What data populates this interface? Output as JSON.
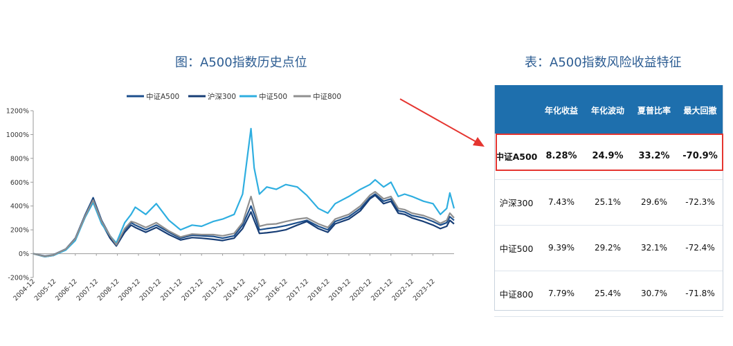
{
  "chart_data": {
    "type": "line",
    "title": "图：A500指数历史点位",
    "xlabel": "",
    "ylabel": "",
    "ylim": [
      -200,
      1200
    ],
    "yticks": [
      -200,
      0,
      200,
      400,
      600,
      800,
      1000,
      1200
    ],
    "ytick_labels": [
      "-200%",
      "0%",
      "200%",
      "400%",
      "600%",
      "800%",
      "1000%",
      "1200%"
    ],
    "x_labels": [
      "2004-12",
      "2005-12",
      "2006-12",
      "2007-12",
      "2008-12",
      "2009-12",
      "2010-12",
      "2011-12",
      "2012-12",
      "2013-12",
      "2014-12",
      "2015-12",
      "2016-12",
      "2017-12",
      "2018-12",
      "2019-12",
      "2020-12",
      "2021-12",
      "2022-12",
      "2023-12"
    ],
    "x_range": [
      2004.95,
      2024.95
    ],
    "grid": false,
    "legend": "top",
    "series": [
      {
        "name": "中证A500",
        "color": "#1c4f8c",
        "x": [
          2004.95,
          2005.5,
          2005.9,
          2006.5,
          2006.95,
          2007.4,
          2007.8,
          2008.2,
          2008.6,
          2008.9,
          2009.3,
          2009.6,
          2009.8,
          2010.3,
          2010.8,
          2011.4,
          2011.95,
          2012.5,
          2012.95,
          2013.5,
          2013.95,
          2014.5,
          2014.9,
          2015.3,
          2015.45,
          2015.7,
          2016.05,
          2016.5,
          2016.95,
          2017.5,
          2017.95,
          2018.5,
          2018.95,
          2019.3,
          2019.95,
          2020.5,
          2020.95,
          2021.2,
          2021.6,
          2021.95,
          2022.3,
          2022.6,
          2022.95,
          2023.5,
          2023.95,
          2024.3,
          2024.6,
          2024.75,
          2024.95
        ],
        "y": [
          0,
          -20,
          -10,
          40,
          130,
          320,
          470,
          280,
          150,
          80,
          200,
          260,
          240,
          200,
          240,
          180,
          130,
          155,
          150,
          145,
          130,
          150,
          240,
          400,
          330,
          200,
          210,
          220,
          235,
          260,
          280,
          230,
          200,
          270,
          310,
          380,
          470,
          500,
          440,
          460,
          360,
          350,
          320,
          300,
          270,
          240,
          260,
          310,
          280
        ]
      },
      {
        "name": "沪深300",
        "color": "#173d75",
        "x": [
          2004.95,
          2005.5,
          2005.9,
          2006.5,
          2006.95,
          2007.4,
          2007.8,
          2008.2,
          2008.6,
          2008.9,
          2009.3,
          2009.6,
          2009.8,
          2010.3,
          2010.8,
          2011.4,
          2011.95,
          2012.5,
          2012.95,
          2013.5,
          2013.95,
          2014.5,
          2014.9,
          2015.3,
          2015.45,
          2015.7,
          2016.05,
          2016.5,
          2016.95,
          2017.5,
          2017.95,
          2018.5,
          2018.95,
          2019.3,
          2019.95,
          2020.5,
          2020.95,
          2021.2,
          2021.6,
          2021.95,
          2022.3,
          2022.6,
          2022.95,
          2023.5,
          2023.95,
          2024.3,
          2024.6,
          2024.75,
          2024.95
        ],
        "y": [
          0,
          -25,
          -15,
          35,
          120,
          300,
          460,
          260,
          130,
          65,
          180,
          240,
          220,
          180,
          220,
          160,
          115,
          135,
          130,
          120,
          110,
          130,
          210,
          350,
          280,
          170,
          175,
          185,
          200,
          240,
          270,
          210,
          180,
          250,
          290,
          360,
          460,
          490,
          420,
          440,
          340,
          330,
          300,
          270,
          240,
          210,
          230,
          280,
          250
        ]
      },
      {
        "name": "中证500",
        "color": "#2eaee0",
        "x": [
          2004.95,
          2005.5,
          2005.9,
          2006.5,
          2006.95,
          2007.4,
          2007.8,
          2008.2,
          2008.6,
          2008.9,
          2009.3,
          2009.6,
          2009.8,
          2010.3,
          2010.8,
          2011.4,
          2011.95,
          2012.5,
          2012.95,
          2013.5,
          2013.95,
          2014.5,
          2014.9,
          2015.3,
          2015.45,
          2015.7,
          2016.05,
          2016.5,
          2016.95,
          2017.5,
          2017.95,
          2018.5,
          2018.95,
          2019.3,
          2019.95,
          2020.5,
          2020.95,
          2021.2,
          2021.6,
          2021.95,
          2022.3,
          2022.6,
          2022.95,
          2023.5,
          2023.95,
          2024.3,
          2024.6,
          2024.75,
          2024.95
        ],
        "y": [
          0,
          -25,
          -15,
          30,
          110,
          300,
          430,
          250,
          150,
          90,
          260,
          330,
          390,
          330,
          420,
          280,
          200,
          240,
          230,
          270,
          290,
          330,
          500,
          1050,
          720,
          500,
          560,
          540,
          580,
          560,
          490,
          380,
          340,
          420,
          480,
          540,
          580,
          620,
          560,
          600,
          480,
          500,
          480,
          440,
          420,
          330,
          380,
          510,
          380
        ]
      },
      {
        "name": "中证800",
        "color": "#8f8f8f",
        "x": [
          2004.95,
          2005.5,
          2005.9,
          2006.5,
          2006.95,
          2007.4,
          2007.8,
          2008.2,
          2008.6,
          2008.9,
          2009.3,
          2009.6,
          2009.8,
          2010.3,
          2010.8,
          2011.4,
          2011.95,
          2012.5,
          2012.95,
          2013.5,
          2013.95,
          2014.5,
          2014.9,
          2015.3,
          2015.45,
          2015.7,
          2016.05,
          2016.5,
          2016.95,
          2017.5,
          2017.95,
          2018.5,
          2018.95,
          2019.3,
          2019.95,
          2020.5,
          2020.95,
          2021.2,
          2021.6,
          2021.95,
          2022.3,
          2022.6,
          2022.95,
          2023.5,
          2023.95,
          2024.3,
          2024.6,
          2024.75,
          2024.95
        ],
        "y": [
          0,
          -22,
          -12,
          38,
          125,
          310,
          450,
          270,
          150,
          75,
          210,
          270,
          260,
          220,
          260,
          190,
          140,
          165,
          160,
          160,
          150,
          170,
          260,
          480,
          380,
          230,
          245,
          250,
          270,
          290,
          300,
          250,
          220,
          290,
          330,
          400,
          490,
          520,
          460,
          480,
          380,
          370,
          340,
          320,
          290,
          255,
          280,
          340,
          300
        ]
      }
    ]
  },
  "table": {
    "title": "表：A500指数风险收益特征",
    "headers": [
      "",
      "年化收益",
      "年化波动",
      "夏普比率",
      "最大回撤"
    ],
    "rows": [
      [
        "中证A500",
        "8.28%",
        "24.9%",
        "33.2%",
        "-70.9%"
      ],
      [
        "沪深300",
        "7.43%",
        "25.1%",
        "29.6%",
        "-72.3%"
      ],
      [
        "中证500",
        "9.39%",
        "29.2%",
        "32.1%",
        "-72.4%"
      ],
      [
        "中证800",
        "7.79%",
        "25.4%",
        "30.7%",
        "-71.8%"
      ]
    ],
    "highlight_row": 0,
    "header_color": "#1e6fad",
    "highlight_color": "#e53530"
  }
}
